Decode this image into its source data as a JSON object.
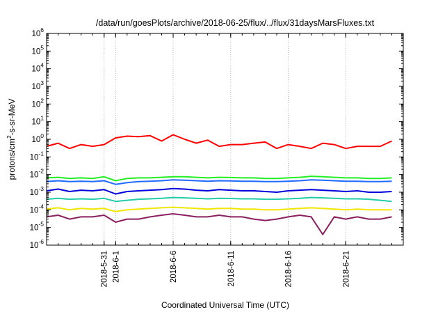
{
  "chart_data": {
    "type": "line",
    "title": "/data/run/goesPlots/archive/2018-06-25/flux/../flux/31daysMarsFluxes.txt",
    "xlabel": "Coordinated Universal Time (UTC)",
    "ylabel": {
      "base": "protons/cm",
      "sup": "2",
      "rest": "-s-sr-MeV"
    },
    "yscale": "log",
    "ylim": [
      1e-06,
      1000000.0
    ],
    "xlim": [
      "2018-05-26",
      "2018-06-26"
    ],
    "grid": true,
    "y_ticks": [
      {
        "exp": -6,
        "base": "10",
        "sup": "-6"
      },
      {
        "exp": -5,
        "base": "10",
        "sup": "-5"
      },
      {
        "exp": -4,
        "base": "10",
        "sup": "-4"
      },
      {
        "exp": -3,
        "base": "10",
        "sup": "-3"
      },
      {
        "exp": -2,
        "base": "10",
        "sup": "-2"
      },
      {
        "exp": -1,
        "base": "10",
        "sup": "-1"
      },
      {
        "exp": 0,
        "base": "10",
        "sup": "0"
      },
      {
        "exp": 1,
        "base": "10",
        "sup": "1"
      },
      {
        "exp": 2,
        "base": "10",
        "sup": "2"
      },
      {
        "exp": 3,
        "base": "10",
        "sup": "3"
      },
      {
        "exp": 4,
        "base": "10",
        "sup": "4"
      },
      {
        "exp": 5,
        "base": "10",
        "sup": "5"
      },
      {
        "exp": 6,
        "base": "10",
        "sup": "6"
      }
    ],
    "x_ticks": [
      {
        "date": "2018-05-31",
        "label": "2018-5-31"
      },
      {
        "date": "2018-06-01",
        "label": "2018-6-1"
      },
      {
        "date": "2018-06-06",
        "label": "2018-6-6"
      },
      {
        "date": "2018-06-11",
        "label": "2018-6-11"
      },
      {
        "date": "2018-06-16",
        "label": "2018-6-16"
      },
      {
        "date": "2018-06-21",
        "label": "2018-6-21"
      }
    ],
    "series": [
      {
        "color": "#ff0000",
        "x": [
          "2018-05-26",
          "2018-05-27",
          "2018-05-28",
          "2018-05-29",
          "2018-05-30",
          "2018-05-31",
          "2018-06-01",
          "2018-06-02",
          "2018-06-03",
          "2018-06-04",
          "2018-06-05",
          "2018-06-06",
          "2018-06-07",
          "2018-06-08",
          "2018-06-09",
          "2018-06-10",
          "2018-06-11",
          "2018-06-12",
          "2018-06-13",
          "2018-06-14",
          "2018-06-15",
          "2018-06-16",
          "2018-06-17",
          "2018-06-18",
          "2018-06-19",
          "2018-06-20",
          "2018-06-21",
          "2018-06-22",
          "2018-06-23",
          "2018-06-24",
          "2018-06-25"
        ],
        "y": [
          0.4,
          0.6,
          0.3,
          0.5,
          0.4,
          0.5,
          1.2,
          1.5,
          1.4,
          1.6,
          0.8,
          1.8,
          1.0,
          0.6,
          0.9,
          0.4,
          0.5,
          0.5,
          0.6,
          0.7,
          0.3,
          0.5,
          0.4,
          0.3,
          0.6,
          0.5,
          0.3,
          0.4,
          0.4,
          0.4,
          0.8
        ]
      },
      {
        "color": "#22ee22",
        "x": [
          "2018-05-26",
          "2018-05-27",
          "2018-05-28",
          "2018-05-29",
          "2018-05-30",
          "2018-05-31",
          "2018-06-01",
          "2018-06-02",
          "2018-06-03",
          "2018-06-04",
          "2018-06-05",
          "2018-06-06",
          "2018-06-07",
          "2018-06-08",
          "2018-06-09",
          "2018-06-10",
          "2018-06-11",
          "2018-06-12",
          "2018-06-13",
          "2018-06-14",
          "2018-06-15",
          "2018-06-16",
          "2018-06-17",
          "2018-06-18",
          "2018-06-19",
          "2018-06-20",
          "2018-06-21",
          "2018-06-22",
          "2018-06-23",
          "2018-06-24",
          "2018-06-25"
        ],
        "y": [
          0.0065,
          0.007,
          0.006,
          0.0065,
          0.006,
          0.0075,
          0.0045,
          0.006,
          0.0065,
          0.0065,
          0.007,
          0.0075,
          0.0075,
          0.007,
          0.0065,
          0.007,
          0.0068,
          0.0065,
          0.0065,
          0.006,
          0.006,
          0.0065,
          0.007,
          0.008,
          0.0075,
          0.007,
          0.0065,
          0.0065,
          0.006,
          0.006,
          0.0065
        ]
      },
      {
        "color": "#1f6cff",
        "x": [
          "2018-05-26",
          "2018-05-27",
          "2018-05-28",
          "2018-05-29",
          "2018-05-30",
          "2018-05-31",
          "2018-06-01",
          "2018-06-02",
          "2018-06-03",
          "2018-06-04",
          "2018-06-05",
          "2018-06-06",
          "2018-06-07",
          "2018-06-08",
          "2018-06-09",
          "2018-06-10",
          "2018-06-11",
          "2018-06-12",
          "2018-06-13",
          "2018-06-14",
          "2018-06-15",
          "2018-06-16",
          "2018-06-17",
          "2018-06-18",
          "2018-06-19",
          "2018-06-20",
          "2018-06-21",
          "2018-06-22",
          "2018-06-23",
          "2018-06-24",
          "2018-06-25"
        ],
        "y": [
          0.004,
          0.0045,
          0.004,
          0.0042,
          0.004,
          0.0045,
          0.0028,
          0.0035,
          0.004,
          0.0042,
          0.0045,
          0.005,
          0.0048,
          0.0045,
          0.0042,
          0.0045,
          0.0044,
          0.0042,
          0.0042,
          0.004,
          0.004,
          0.0042,
          0.0045,
          0.005,
          0.0048,
          0.0045,
          0.0042,
          0.0042,
          0.004,
          0.004,
          0.0042
        ]
      },
      {
        "color": "#0000dd",
        "x": [
          "2018-05-26",
          "2018-05-27",
          "2018-05-28",
          "2018-05-29",
          "2018-05-30",
          "2018-05-31",
          "2018-06-01",
          "2018-06-02",
          "2018-06-03",
          "2018-06-04",
          "2018-06-05",
          "2018-06-06",
          "2018-06-07",
          "2018-06-08",
          "2018-06-09",
          "2018-06-10",
          "2018-06-11",
          "2018-06-12",
          "2018-06-13",
          "2018-06-14",
          "2018-06-15",
          "2018-06-16",
          "2018-06-17",
          "2018-06-18",
          "2018-06-19",
          "2018-06-20",
          "2018-06-21",
          "2018-06-22",
          "2018-06-23",
          "2018-06-24",
          "2018-06-25"
        ],
        "y": [
          0.0012,
          0.0015,
          0.0011,
          0.0013,
          0.0012,
          0.0014,
          0.0008,
          0.0011,
          0.0012,
          0.0013,
          0.0014,
          0.0016,
          0.0015,
          0.0013,
          0.0012,
          0.0014,
          0.0013,
          0.0012,
          0.0012,
          0.0011,
          0.001,
          0.0012,
          0.0013,
          0.0014,
          0.0013,
          0.0012,
          0.0011,
          0.0012,
          0.001,
          0.001,
          0.0011
        ]
      },
      {
        "color": "#22ccaa",
        "x": [
          "2018-05-26",
          "2018-05-27",
          "2018-05-28",
          "2018-05-29",
          "2018-05-30",
          "2018-05-31",
          "2018-06-01",
          "2018-06-02",
          "2018-06-03",
          "2018-06-04",
          "2018-06-05",
          "2018-06-06",
          "2018-06-07",
          "2018-06-08",
          "2018-06-09",
          "2018-06-10",
          "2018-06-11",
          "2018-06-12",
          "2018-06-13",
          "2018-06-14",
          "2018-06-15",
          "2018-06-16",
          "2018-06-17",
          "2018-06-18",
          "2018-06-19",
          "2018-06-20",
          "2018-06-21",
          "2018-06-22",
          "2018-06-23",
          "2018-06-24",
          "2018-06-25"
        ],
        "y": [
          0.0004,
          0.00045,
          0.0004,
          0.00042,
          0.0004,
          0.00045,
          0.0003,
          0.00035,
          0.0004,
          0.00042,
          0.00045,
          0.0005,
          0.00048,
          0.00045,
          0.00042,
          0.00045,
          0.00044,
          0.00042,
          0.00042,
          0.0004,
          0.0004,
          0.00042,
          0.00045,
          0.0005,
          0.00048,
          0.00045,
          0.00042,
          0.00042,
          0.0004,
          0.00035,
          0.0003
        ]
      },
      {
        "color": "#f2e600",
        "x": [
          "2018-05-26",
          "2018-05-27",
          "2018-05-28",
          "2018-05-29",
          "2018-05-30",
          "2018-05-31",
          "2018-06-01",
          "2018-06-02",
          "2018-06-03",
          "2018-06-04",
          "2018-06-05",
          "2018-06-06",
          "2018-06-07",
          "2018-06-08",
          "2018-06-09",
          "2018-06-10",
          "2018-06-11",
          "2018-06-12",
          "2018-06-13",
          "2018-06-14",
          "2018-06-15",
          "2018-06-16",
          "2018-06-17",
          "2018-06-18",
          "2018-06-19",
          "2018-06-20",
          "2018-06-21",
          "2018-06-22",
          "2018-06-23",
          "2018-06-24",
          "2018-06-25"
        ],
        "y": [
          0.00011,
          0.00013,
          0.0001,
          0.00012,
          0.00011,
          0.00012,
          8e-05,
          0.0001,
          0.00011,
          0.00012,
          0.00013,
          0.00014,
          0.00013,
          0.00012,
          0.00011,
          0.00012,
          0.00012,
          0.00011,
          0.00011,
          0.0001,
          0.0001,
          0.00011,
          0.00012,
          0.00013,
          0.00012,
          0.00011,
          0.0001,
          0.00011,
          0.0001,
          0.0001,
          0.0001
        ]
      },
      {
        "color": "#8b2060",
        "x": [
          "2018-05-26",
          "2018-05-27",
          "2018-05-28",
          "2018-05-29",
          "2018-05-30",
          "2018-05-31",
          "2018-06-01",
          "2018-06-02",
          "2018-06-03",
          "2018-06-04",
          "2018-06-05",
          "2018-06-06",
          "2018-06-07",
          "2018-06-08",
          "2018-06-09",
          "2018-06-10",
          "2018-06-11",
          "2018-06-12",
          "2018-06-13",
          "2018-06-14",
          "2018-06-15",
          "2018-06-16",
          "2018-06-17",
          "2018-06-18",
          "2018-06-19",
          "2018-06-20",
          "2018-06-21",
          "2018-06-22",
          "2018-06-23",
          "2018-06-24",
          "2018-06-25"
        ],
        "y": [
          4e-05,
          5e-05,
          3e-05,
          4e-05,
          4e-05,
          5e-05,
          2e-05,
          3e-05,
          3e-05,
          4e-05,
          5e-05,
          6e-05,
          5e-05,
          4e-05,
          4e-05,
          5e-05,
          4e-05,
          4e-05,
          3e-05,
          2.5e-05,
          3e-05,
          4e-05,
          5e-05,
          4e-05,
          4e-06,
          4e-05,
          3e-05,
          4e-05,
          3e-05,
          3e-05,
          4e-05
        ]
      }
    ]
  }
}
